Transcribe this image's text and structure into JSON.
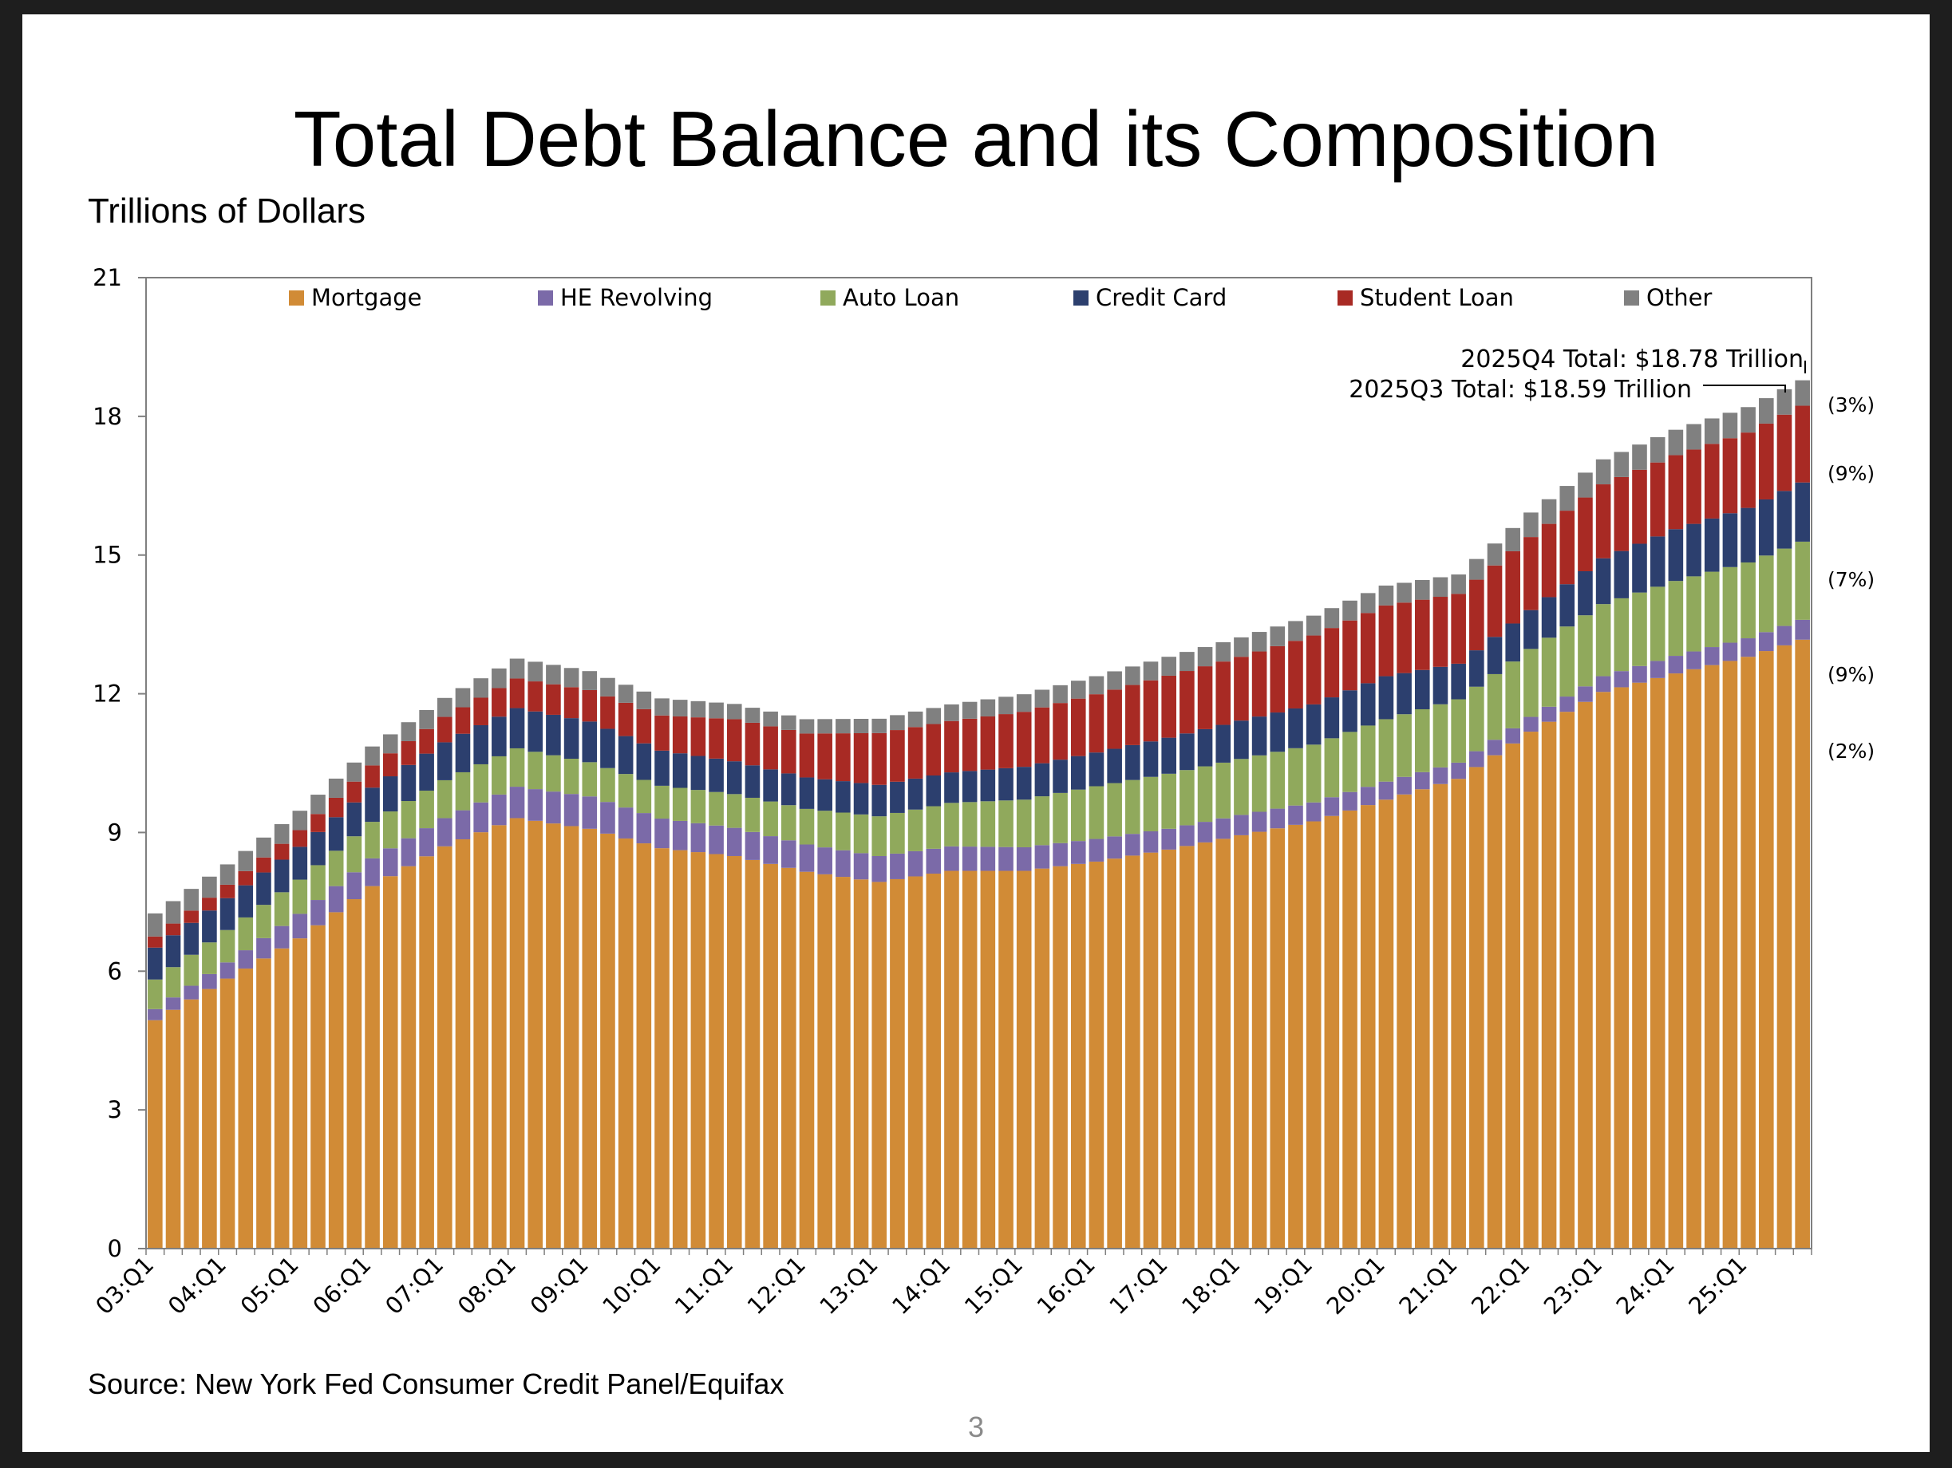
{
  "slide": {
    "title": "Total Debt Balance and its Composition",
    "subtitle": "Trillions of Dollars",
    "source": "Source: New York Fed Consumer Credit Panel/Equifax",
    "page_number": "3"
  },
  "chart_data": {
    "type": "bar",
    "stacked": true,
    "title": "Total Debt Balance and its Composition",
    "ylabel": "Trillions of Dollars",
    "xlabel": "",
    "ylim": [
      0,
      21
    ],
    "yticks": [
      0,
      3,
      6,
      9,
      12,
      15,
      18,
      21
    ],
    "xtick_labels": [
      "03:Q1",
      "04:Q1",
      "05:Q1",
      "06:Q1",
      "07:Q1",
      "08:Q1",
      "09:Q1",
      "10:Q1",
      "11:Q1",
      "12:Q1",
      "13:Q1",
      "14:Q1",
      "15:Q1",
      "16:Q1",
      "17:Q1",
      "18:Q1",
      "19:Q1",
      "20:Q1",
      "21:Q1",
      "22:Q1",
      "23:Q1",
      "24:Q1",
      "25:Q1"
    ],
    "legend_position": "top",
    "colors": {
      "mortgage": "#d18b36",
      "he_revolving": "#7b6aa8",
      "auto_loan": "#90a95c",
      "credit_card": "#2c3f6e",
      "student_loan": "#a82a24",
      "other": "#808080"
    },
    "anchors": {
      "quarters": [
        0,
        4,
        8,
        12,
        16,
        20,
        24,
        28,
        32,
        36,
        40,
        44,
        48,
        52,
        56,
        60,
        64,
        68,
        72,
        76,
        80,
        84,
        88,
        91
      ],
      "series": [
        {
          "name": "Mortgage",
          "key": "mortgage",
          "values": [
            4.94,
            5.84,
            6.71,
            7.84,
            8.7,
            9.31,
            9.08,
            8.66,
            8.49,
            8.15,
            7.93,
            8.17,
            8.17,
            8.37,
            8.63,
            8.94,
            9.24,
            9.71,
            10.16,
            11.18,
            12.04,
            12.44,
            12.8,
            13.17
          ]
        },
        {
          "name": "HE Revolving",
          "key": "he_revolving",
          "values": [
            0.24,
            0.35,
            0.53,
            0.6,
            0.61,
            0.68,
            0.7,
            0.64,
            0.61,
            0.59,
            0.56,
            0.53,
            0.51,
            0.49,
            0.45,
            0.44,
            0.41,
            0.39,
            0.35,
            0.32,
            0.34,
            0.38,
            0.4,
            0.43
          ]
        },
        {
          "name": "Auto Loan",
          "key": "auto_loan",
          "values": [
            0.64,
            0.7,
            0.74,
            0.79,
            0.82,
            0.83,
            0.74,
            0.71,
            0.73,
            0.77,
            0.86,
            0.94,
            1.03,
            1.14,
            1.19,
            1.21,
            1.25,
            1.35,
            1.37,
            1.47,
            1.56,
            1.62,
            1.64,
            1.69
          ]
        },
        {
          "name": "Credit Card",
          "key": "credit_card",
          "values": [
            0.69,
            0.69,
            0.71,
            0.74,
            0.82,
            0.87,
            0.88,
            0.76,
            0.71,
            0.68,
            0.68,
            0.66,
            0.71,
            0.73,
            0.78,
            0.83,
            0.87,
            0.93,
            0.77,
            0.84,
            0.99,
            1.12,
            1.18,
            1.28
          ]
        },
        {
          "name": "Student Loan",
          "key": "student_loan",
          "values": [
            0.24,
            0.29,
            0.36,
            0.48,
            0.55,
            0.64,
            0.68,
            0.76,
            0.91,
            0.95,
            1.12,
            1.11,
            1.19,
            1.26,
            1.34,
            1.38,
            1.49,
            1.53,
            1.51,
            1.58,
            1.6,
            1.6,
            1.63,
            1.66
          ]
        },
        {
          "name": "Other",
          "key": "other",
          "values": [
            0.5,
            0.44,
            0.42,
            0.41,
            0.41,
            0.43,
            0.41,
            0.37,
            0.33,
            0.31,
            0.31,
            0.36,
            0.38,
            0.39,
            0.41,
            0.42,
            0.43,
            0.43,
            0.42,
            0.53,
            0.54,
            0.55,
            0.55,
            0.55
          ]
        }
      ]
    },
    "legend": [
      {
        "key": "mortgage",
        "label": "Mortgage"
      },
      {
        "key": "he_revolving",
        "label": "HE Revolving"
      },
      {
        "key": "auto_loan",
        "label": "Auto Loan"
      },
      {
        "key": "credit_card",
        "label": "Credit Card"
      },
      {
        "key": "student_loan",
        "label": "Student Loan"
      },
      {
        "key": "other",
        "label": "Other"
      }
    ],
    "annotations": {
      "q4_total": "2025Q4 Total: $18.78 Trillion",
      "q3_total": "2025Q3 Total: $18.59 Trillion"
    },
    "share_labels": [
      {
        "label": "(3%)",
        "series": "other"
      },
      {
        "label": "(9%)",
        "series": "student_loan"
      },
      {
        "label": "(7%)",
        "series": "credit_card"
      },
      {
        "label": "(9%)",
        "series": "auto_loan"
      },
      {
        "label": "(2%)",
        "series": "he_revolving"
      }
    ]
  }
}
